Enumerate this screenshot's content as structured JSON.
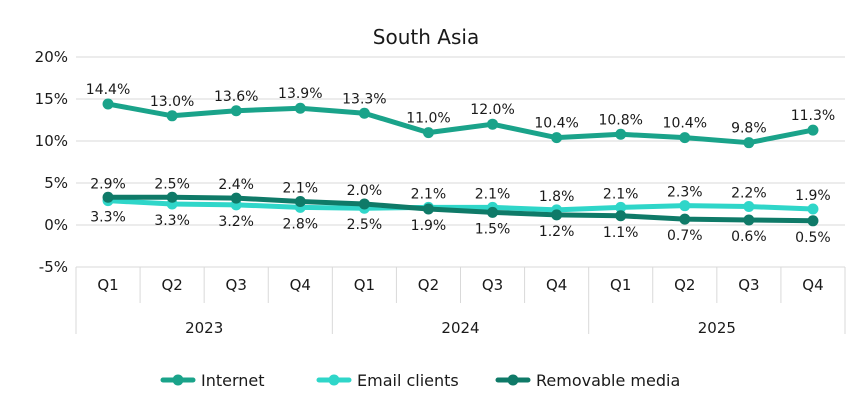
{
  "chart_data": {
    "type": "line",
    "title": "South Asia",
    "xlabel": "",
    "ylabel": "",
    "ylim": [
      -5,
      20
    ],
    "yticks": [
      "20%",
      "15%",
      "10%",
      "5%",
      "0%",
      "-5%"
    ],
    "ytick_values": [
      20,
      15,
      10,
      5,
      0,
      -5
    ],
    "categories": [
      "Q1",
      "Q2",
      "Q3",
      "Q4",
      "Q1",
      "Q2",
      "Q3",
      "Q4",
      "Q1",
      "Q2",
      "Q3",
      "Q4"
    ],
    "year_groups": [
      {
        "label": "2023",
        "count": 4
      },
      {
        "label": "2024",
        "count": 4
      },
      {
        "label": "2025",
        "count": 4
      }
    ],
    "grid": true,
    "legend_position": "bottom",
    "series": [
      {
        "name": "Internet",
        "color": "#1aa38a",
        "values": [
          14.4,
          13.0,
          13.6,
          13.9,
          13.3,
          11.0,
          12.0,
          10.4,
          10.8,
          10.4,
          9.8,
          11.3
        ],
        "labels": [
          "14.4%",
          "13.0%",
          "13.6%",
          "13.9%",
          "13.3%",
          "11.0%",
          "12.0%",
          "10.4%",
          "10.8%",
          "10.4%",
          "9.8%",
          "11.3%"
        ]
      },
      {
        "name": "Email clients",
        "color": "#2fd6c9",
        "values": [
          2.9,
          2.5,
          2.4,
          2.1,
          2.0,
          2.1,
          2.1,
          1.8,
          2.1,
          2.3,
          2.2,
          1.9
        ],
        "labels": [
          "2.9%",
          "2.5%",
          "2.4%",
          "2.1%",
          "2.0%",
          "2.1%",
          "2.1%",
          "1.8%",
          "2.1%",
          "2.3%",
          "2.2%",
          "1.9%"
        ]
      },
      {
        "name": "Removable media",
        "color": "#0f7a68",
        "values": [
          3.3,
          3.3,
          3.2,
          2.8,
          2.5,
          1.9,
          1.5,
          1.2,
          1.1,
          0.7,
          0.6,
          0.5
        ],
        "labels": [
          "3.3%",
          "3.3%",
          "3.2%",
          "2.8%",
          "2.5%",
          "1.9%",
          "1.5%",
          "1.2%",
          "1.1%",
          "0.7%",
          "0.6%",
          "0.5%"
        ]
      }
    ]
  }
}
